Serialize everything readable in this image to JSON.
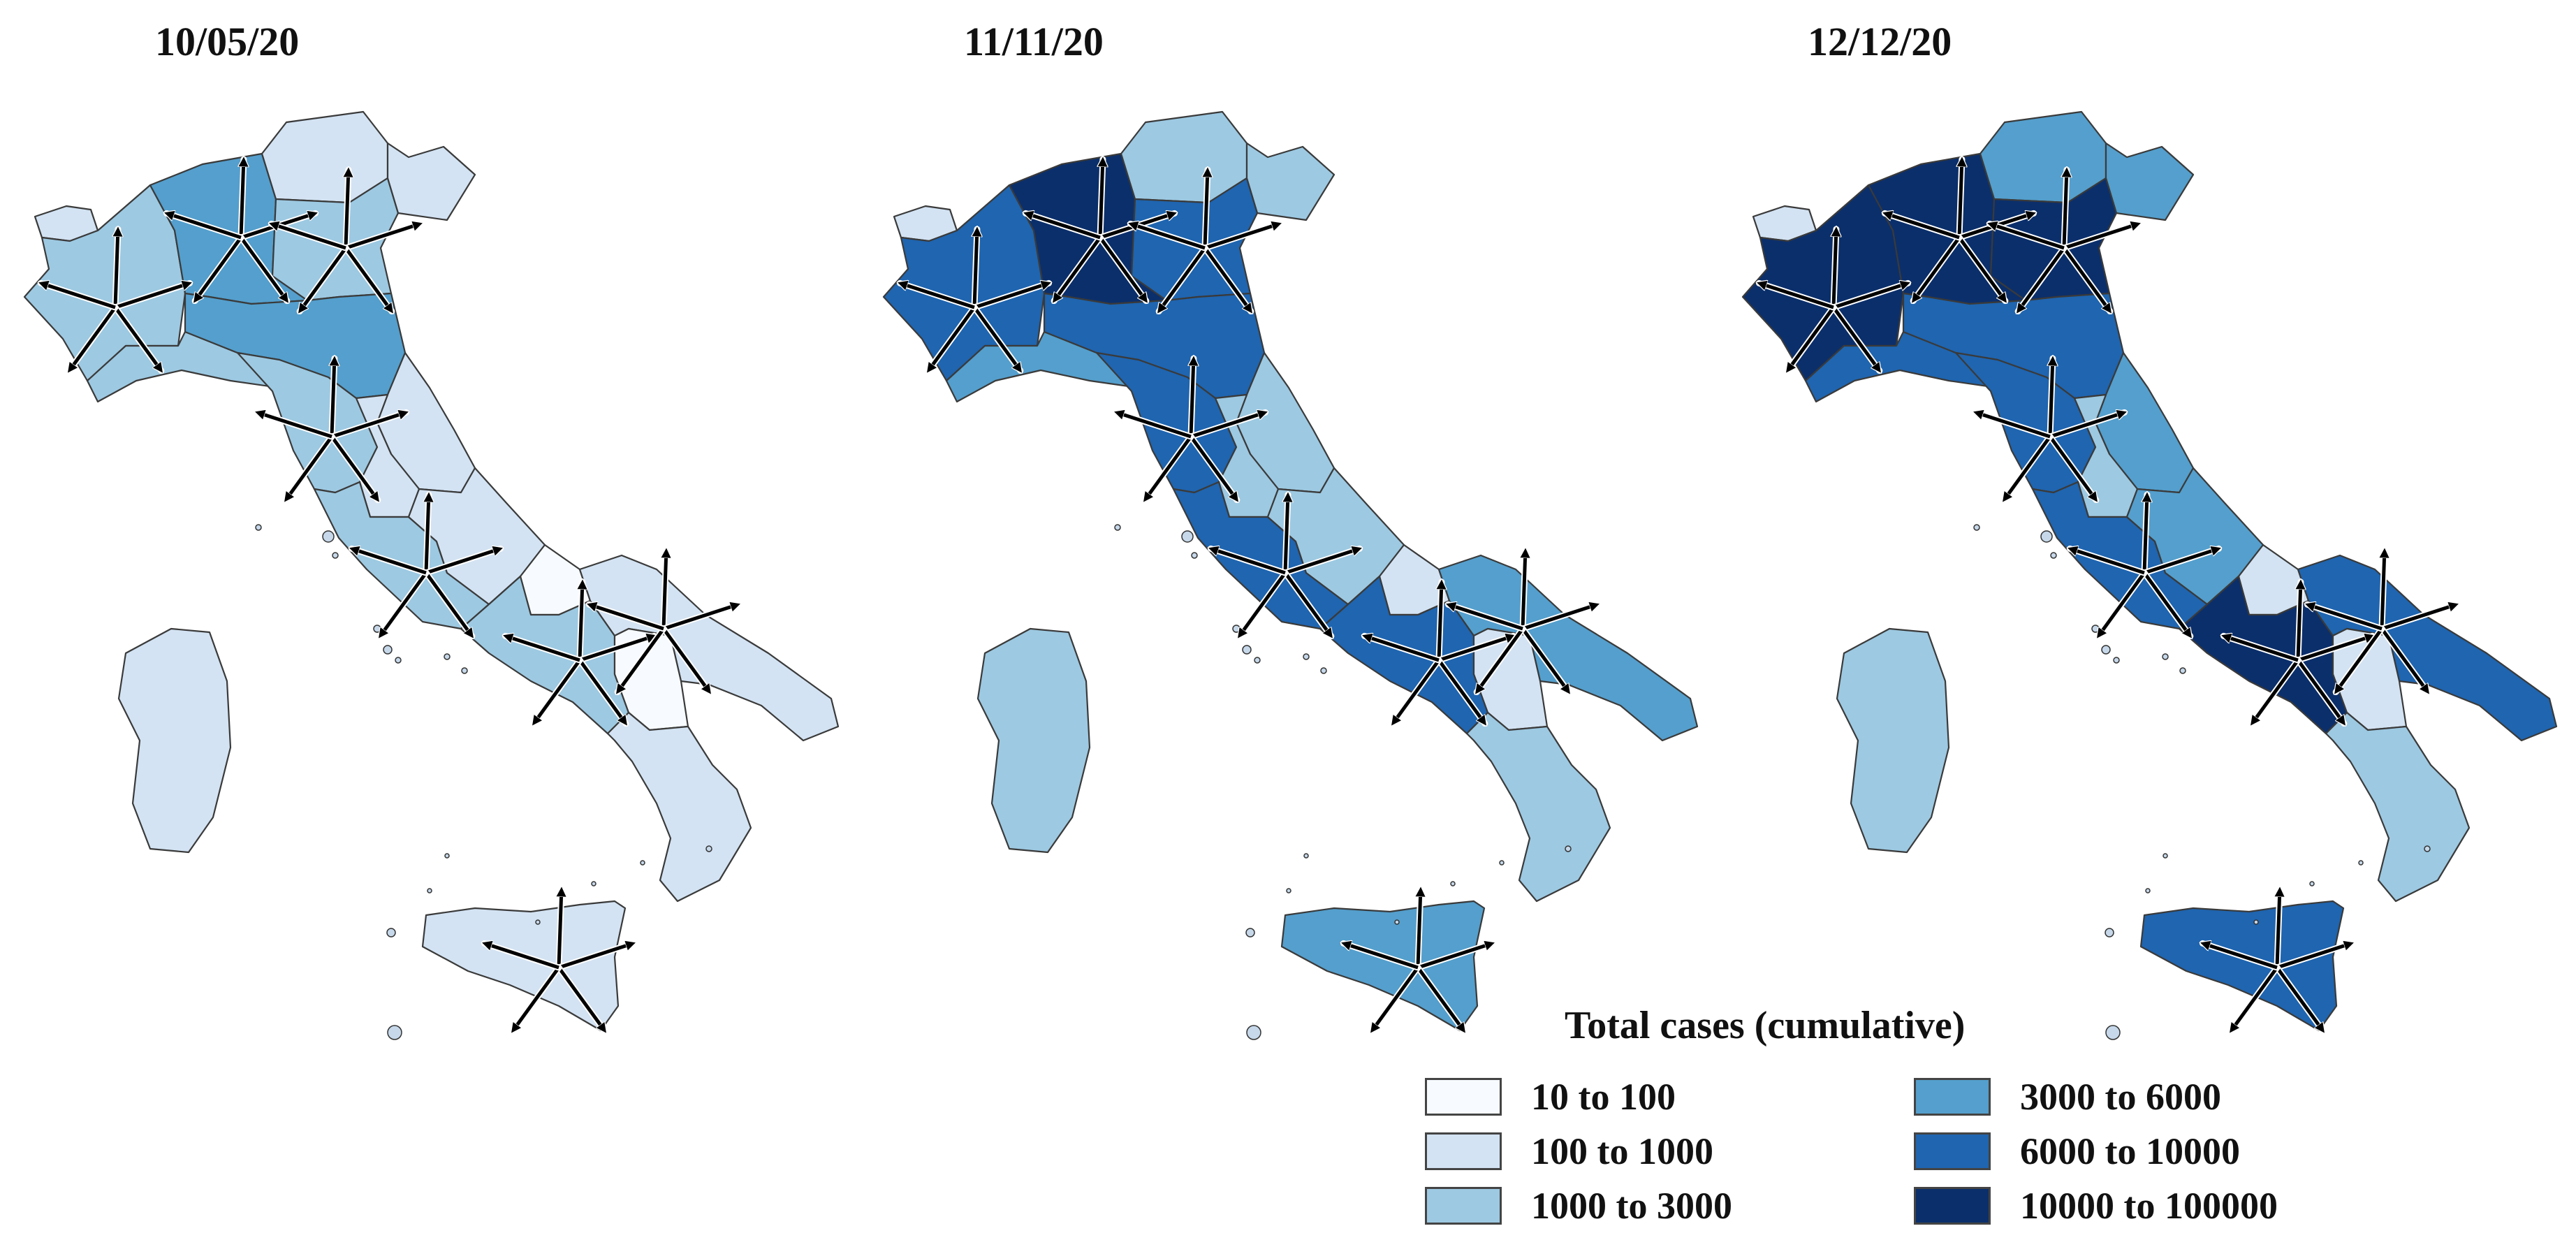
{
  "panels": [
    {
      "date": "10/05/20",
      "offset": 0,
      "fills": {
        "aosta": 1,
        "piedmont": 2,
        "liguria": 2,
        "lombardy": 3,
        "trentino": 1,
        "veneto": 2,
        "friuli": 1,
        "emilia": 3,
        "tuscany": 2,
        "marche": 1,
        "umbria": 1,
        "lazio": 2,
        "abruzzo": 1,
        "molise": 0,
        "campania": 2,
        "apulia": 1,
        "basilicata": 0,
        "calabria": 1,
        "sicily": 1,
        "sardinia": 1
      },
      "arrows": [
        "piedmont",
        "lombardy",
        "veneto",
        "tuscany",
        "lazio",
        "campania",
        "apulia",
        "sicily"
      ]
    },
    {
      "date": "11/11/20",
      "offset": 1230,
      "fills": {
        "aosta": 1,
        "piedmont": 4,
        "liguria": 3,
        "lombardy": 5,
        "trentino": 2,
        "veneto": 4,
        "friuli": 2,
        "emilia": 4,
        "tuscany": 4,
        "marche": 2,
        "umbria": 2,
        "lazio": 4,
        "abruzzo": 2,
        "molise": 1,
        "campania": 4,
        "apulia": 3,
        "basilicata": 1,
        "calabria": 2,
        "sicily": 3,
        "sardinia": 2
      },
      "arrows": [
        "piedmont",
        "lombardy",
        "veneto",
        "tuscany",
        "lazio",
        "campania",
        "apulia",
        "sicily"
      ]
    },
    {
      "date": "12/12/20",
      "offset": 2460,
      "fills": {
        "aosta": 1,
        "piedmont": 5,
        "liguria": 4,
        "lombardy": 5,
        "trentino": 3,
        "veneto": 5,
        "friuli": 3,
        "emilia": 4,
        "tuscany": 4,
        "marche": 3,
        "umbria": 2,
        "lazio": 4,
        "abruzzo": 3,
        "molise": 1,
        "campania": 5,
        "apulia": 4,
        "basilicata": 1,
        "calabria": 2,
        "sicily": 4,
        "sardinia": 2
      },
      "arrows": [
        "piedmont",
        "lombardy",
        "veneto",
        "tuscany",
        "lazio",
        "campania",
        "apulia",
        "sicily"
      ]
    }
  ],
  "legend": {
    "title": "Total cases (cumulative)",
    "items": [
      {
        "label": "10 to 100",
        "color": "#f7fbff"
      },
      {
        "label": "100 to 1000",
        "color": "#d3e3f3"
      },
      {
        "label": "1000 to 3000",
        "color": "#9dc9e2"
      },
      {
        "label": "3000 to 6000",
        "color": "#549fcd"
      },
      {
        "label": "6000 to 10000",
        "color": "#1f65b0"
      },
      {
        "label": "10000 to 100000",
        "color": "#0b2f6b"
      }
    ]
  }
}
